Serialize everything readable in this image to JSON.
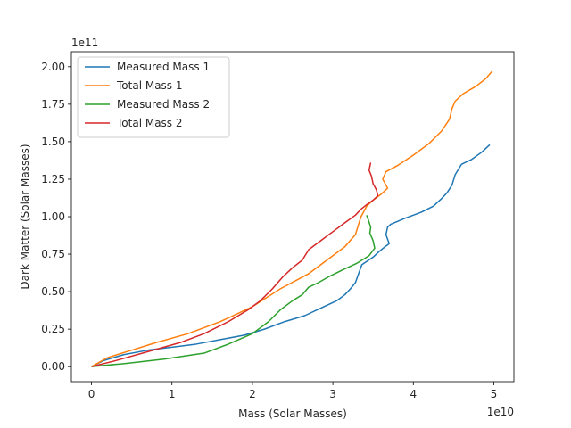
{
  "chart_data": {
    "type": "line",
    "title": "",
    "xlabel": "Mass (Solar Masses)",
    "ylabel": "Dark Matter (Solar Masses)",
    "x_scale_label": "1e10",
    "y_scale_label": "1e11",
    "xlim": [
      -0.25,
      5.25
    ],
    "ylim": [
      -0.1,
      2.1
    ],
    "x_ticks": [
      0,
      1,
      2,
      3,
      4,
      5
    ],
    "x_tick_labels": [
      "0",
      "1",
      "2",
      "3",
      "4",
      "5"
    ],
    "y_ticks": [
      0,
      0.25,
      0.5,
      0.75,
      1.0,
      1.25,
      1.5,
      1.75,
      2.0
    ],
    "y_tick_labels": [
      "0.00",
      "0.25",
      "0.50",
      "0.75",
      "1.00",
      "1.25",
      "1.50",
      "1.75",
      "2.00"
    ],
    "grid": false,
    "legend_position": "top-left",
    "series": [
      {
        "name": "Measured Mass 1",
        "color": "#1f77b4",
        "x": [
          0.0,
          0.15,
          0.4,
          0.7,
          1.0,
          1.3,
          1.6,
          1.9,
          2.15,
          2.4,
          2.65,
          2.85,
          3.05,
          3.15,
          3.22,
          3.28,
          3.32,
          3.36,
          3.5,
          3.58,
          3.65,
          3.7,
          3.66,
          3.68,
          3.72,
          3.9,
          4.1,
          4.25,
          4.35,
          4.42,
          4.48,
          4.52,
          4.6,
          4.72,
          4.85,
          4.95
        ],
        "y": [
          0.0,
          0.04,
          0.08,
          0.11,
          0.13,
          0.15,
          0.18,
          0.21,
          0.25,
          0.3,
          0.34,
          0.39,
          0.44,
          0.48,
          0.52,
          0.56,
          0.62,
          0.68,
          0.73,
          0.77,
          0.8,
          0.82,
          0.88,
          0.93,
          0.95,
          0.99,
          1.03,
          1.07,
          1.12,
          1.16,
          1.21,
          1.28,
          1.35,
          1.38,
          1.43,
          1.48
        ]
      },
      {
        "name": "Total Mass 1",
        "color": "#ff7f0e",
        "x": [
          0.0,
          0.2,
          0.5,
          0.8,
          1.2,
          1.6,
          2.0,
          2.35,
          2.7,
          2.95,
          3.15,
          3.28,
          3.32,
          3.35,
          3.42,
          3.5,
          3.6,
          3.68,
          3.62,
          3.66,
          3.8,
          4.0,
          4.2,
          4.35,
          4.45,
          4.48,
          4.52,
          4.62,
          4.78,
          4.9,
          4.98
        ],
        "y": [
          0.0,
          0.06,
          0.11,
          0.16,
          0.22,
          0.3,
          0.4,
          0.52,
          0.62,
          0.72,
          0.8,
          0.88,
          0.95,
          1.0,
          1.07,
          1.11,
          1.15,
          1.19,
          1.25,
          1.3,
          1.34,
          1.41,
          1.49,
          1.57,
          1.65,
          1.72,
          1.77,
          1.82,
          1.87,
          1.92,
          1.97
        ]
      },
      {
        "name": "Measured Mass 2",
        "color": "#2ca02c",
        "x": [
          0.0,
          0.4,
          0.9,
          1.4,
          1.7,
          2.0,
          2.2,
          2.35,
          2.5,
          2.62,
          2.7,
          2.82,
          2.95,
          3.1,
          3.3,
          3.45,
          3.52,
          3.5,
          3.46,
          3.47,
          3.44,
          3.42
        ],
        "y": [
          0.0,
          0.02,
          0.05,
          0.09,
          0.15,
          0.22,
          0.3,
          0.38,
          0.44,
          0.48,
          0.53,
          0.56,
          0.6,
          0.64,
          0.69,
          0.74,
          0.79,
          0.84,
          0.89,
          0.93,
          0.98,
          1.01
        ]
      },
      {
        "name": "Total Mass 2",
        "color": "#d62728",
        "x": [
          0.0,
          0.3,
          0.7,
          1.1,
          1.4,
          1.7,
          1.95,
          2.1,
          2.25,
          2.38,
          2.5,
          2.62,
          2.7,
          2.85,
          3.0,
          3.15,
          3.28,
          3.35,
          3.42,
          3.5,
          3.56,
          3.54,
          3.5,
          3.48,
          3.45,
          3.47
        ],
        "y": [
          0.0,
          0.04,
          0.1,
          0.16,
          0.22,
          0.3,
          0.38,
          0.44,
          0.52,
          0.6,
          0.66,
          0.71,
          0.78,
          0.84,
          0.9,
          0.96,
          1.01,
          1.05,
          1.08,
          1.11,
          1.14,
          1.18,
          1.22,
          1.27,
          1.31,
          1.36
        ]
      }
    ]
  }
}
